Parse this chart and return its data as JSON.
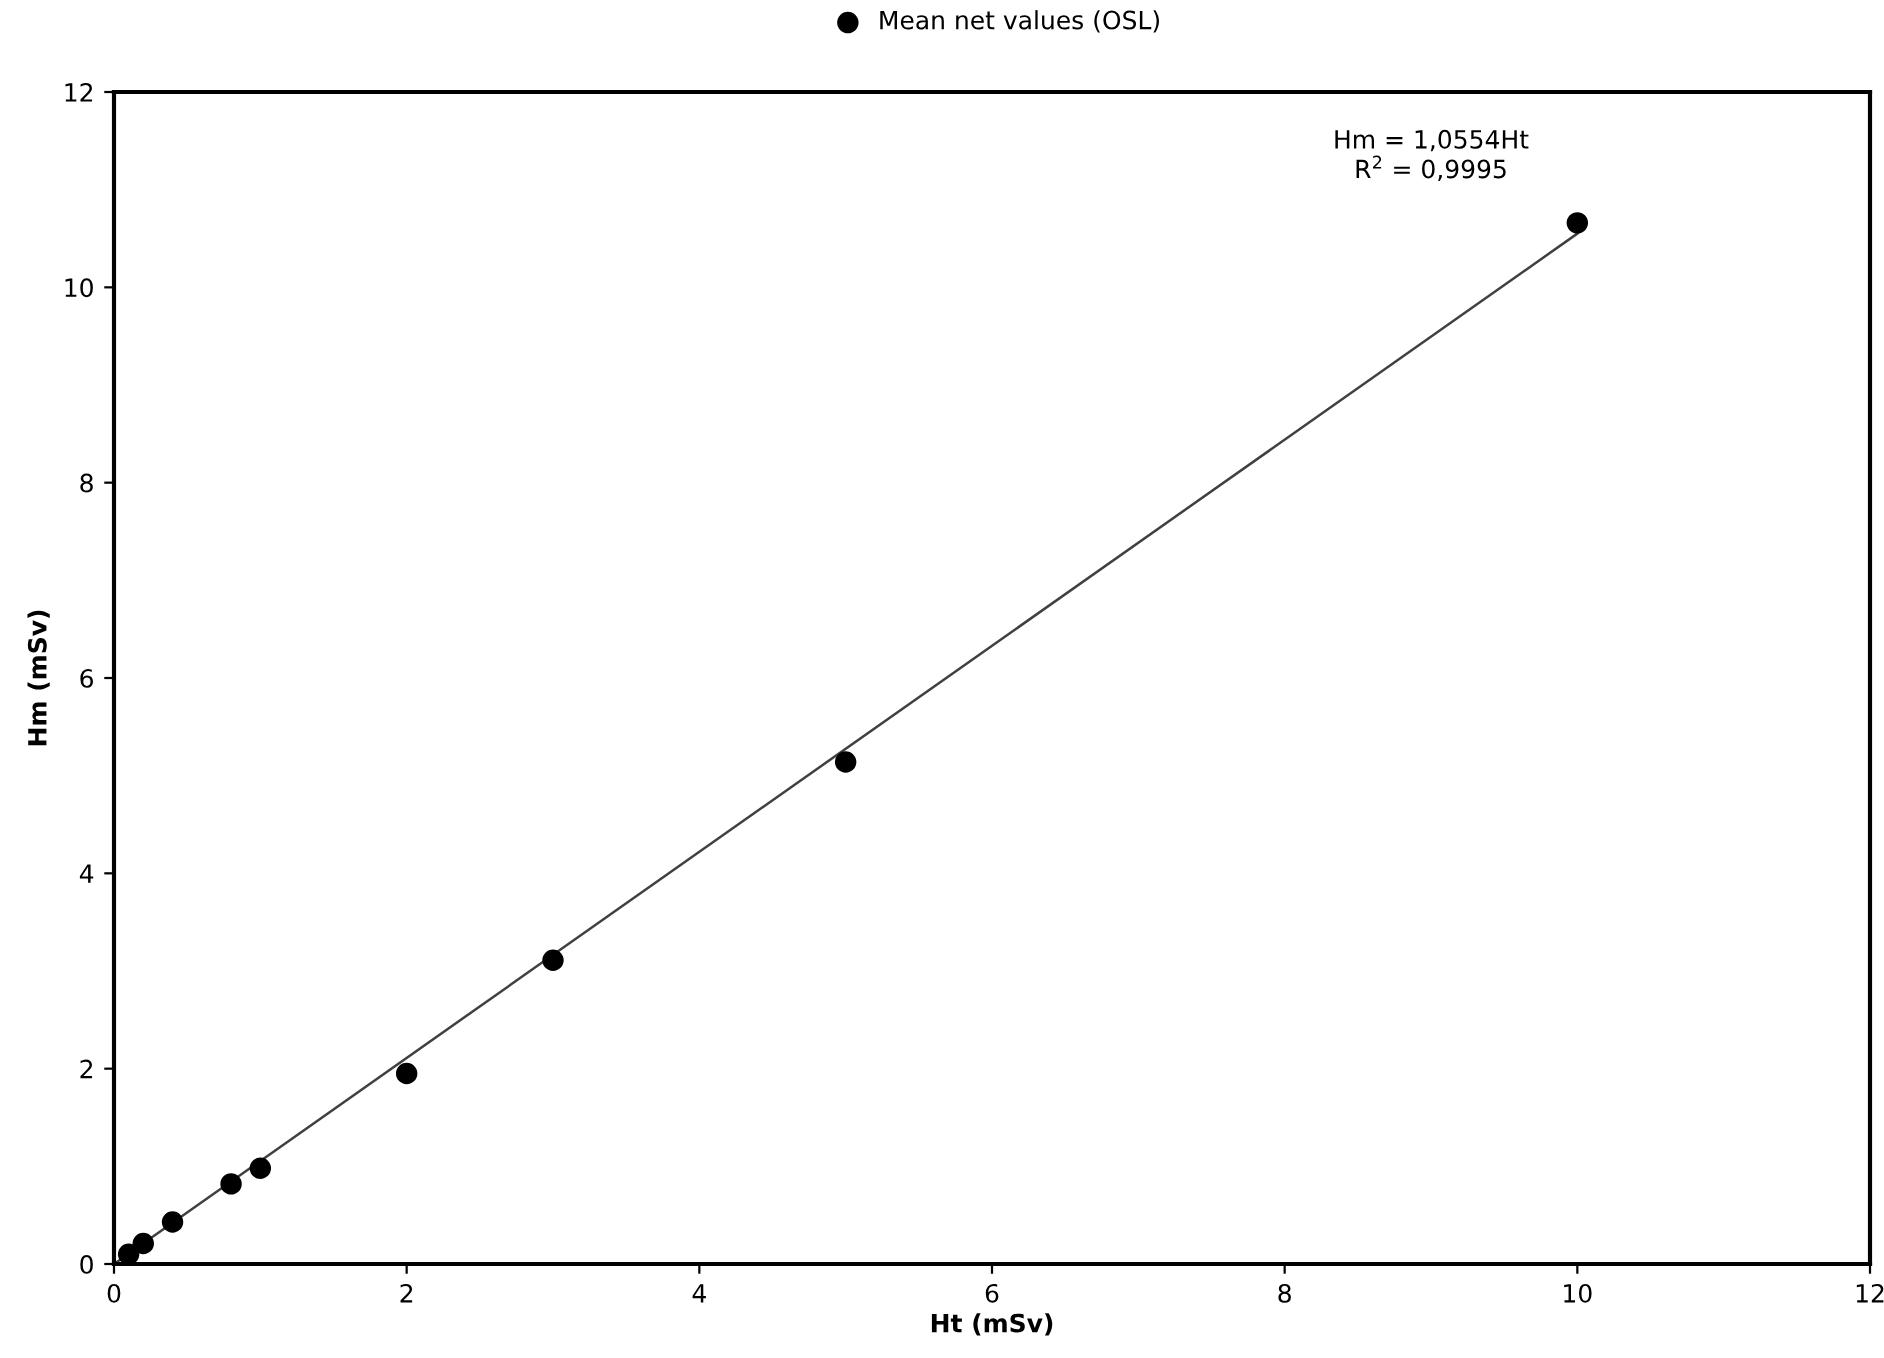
{
  "chart_data": {
    "type": "scatter",
    "xlabel": "Ht (mSv)",
    "ylabel": "Hm (mSv)",
    "x": [
      0.1,
      0.2,
      0.4,
      0.8,
      1,
      2,
      3,
      5,
      10
    ],
    "series": [
      {
        "name": "Mean net values (OSL)",
        "color": "#000000",
        "marker": "circle",
        "values": [
          0.1,
          0.21,
          0.43,
          0.82,
          0.98,
          1.95,
          3.11,
          5.14,
          10.66
        ]
      },
      {
        "type": "line",
        "color": "#404040",
        "x": [
          0,
          10
        ],
        "values": [
          0,
          10.55
        ],
        "marker": "none"
      }
    ],
    "annotations": [
      "Hm = 1,0554Ht\nR$^{2}$ = 0,9995"
    ],
    "xlim": [
      0,
      12
    ],
    "ylim": [
      0,
      12
    ],
    "xticks": [
      0,
      2,
      4,
      6,
      8,
      10,
      12
    ],
    "yticks": [
      0,
      2,
      4,
      6,
      8,
      10,
      12
    ],
    "grid": false,
    "legend": "top"
  }
}
